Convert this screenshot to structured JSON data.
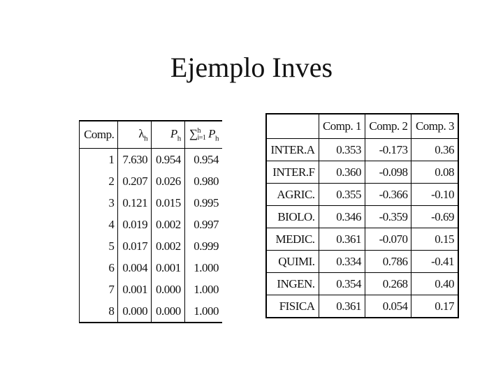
{
  "header": {
    "title": "Ejemplo Inves"
  },
  "eigen_table": {
    "columns": {
      "comp": "Comp.",
      "lambda": {
        "symbol": "λ",
        "sub": "h"
      },
      "p": {
        "symbol": "P",
        "sub": "h"
      },
      "cumulative": {
        "symbol": "∑",
        "lower": "i=1",
        "upper": "h",
        "term": "P",
        "term_sub": "h"
      }
    },
    "rows": [
      [
        "1",
        "7.630",
        "0.954",
        "0.954"
      ],
      [
        "2",
        "0.207",
        "0.026",
        "0.980"
      ],
      [
        "3",
        "0.121",
        "0.015",
        "0.995"
      ],
      [
        "4",
        "0.019",
        "0.002",
        "0.997"
      ],
      [
        "5",
        "0.017",
        "0.002",
        "0.999"
      ],
      [
        "6",
        "0.004",
        "0.001",
        "1.000"
      ],
      [
        "7",
        "0.001",
        "0.000",
        "1.000"
      ],
      [
        "8",
        "0.000",
        "0.000",
        "1.000"
      ]
    ]
  },
  "loadings_table": {
    "columns": [
      "Comp. 1",
      "Comp. 2",
      "Comp. 3"
    ],
    "rows": [
      [
        "INTER.A",
        "0.353",
        "-0.173",
        "0.36"
      ],
      [
        "INTER.F",
        "0.360",
        "-0.098",
        "0.08"
      ],
      [
        "AGRIC.",
        "0.355",
        "-0.366",
        "-0.10"
      ],
      [
        "BIOLO.",
        "0.346",
        "-0.359",
        "-0.69"
      ],
      [
        "MEDIC.",
        "0.361",
        "-0.070",
        "0.15"
      ],
      [
        "QUIMI.",
        "0.334",
        "0.786",
        "-0.41"
      ],
      [
        "INGEN.",
        "0.354",
        "0.268",
        "0.40"
      ],
      [
        "FISICA",
        "0.361",
        "0.054",
        "0.17"
      ]
    ]
  }
}
